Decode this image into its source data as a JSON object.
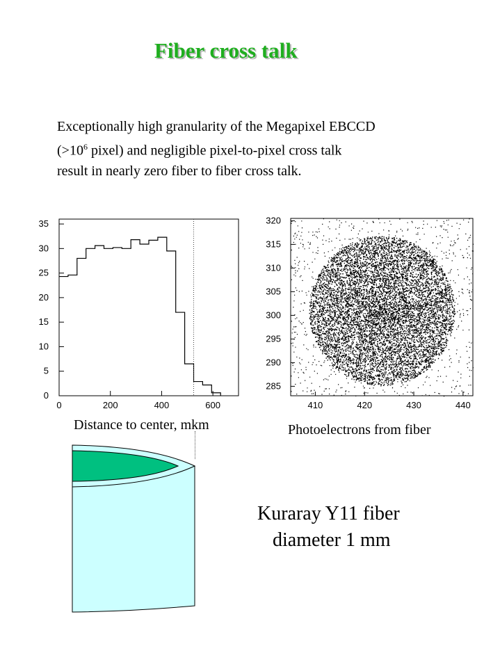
{
  "page": {
    "title": "Fiber cross talk",
    "intro_lines": [
      "Exceptionally high granularity of the Megapixel EBCCD",
      "pixel) and negligible pixel-to-pixel cross talk",
      "result in nearly zero fiber to fiber cross talk."
    ],
    "intro_prefix": "(>10",
    "intro_sup": "6",
    "fiber_label_1": "Kuraray Y11 fiber",
    "fiber_label_2": "diameter 1 mm",
    "colors": {
      "title": "#1fae1f",
      "fiber_core": "#00c080",
      "fiber_cladding": "#ccffff"
    }
  },
  "chart_data": [
    {
      "type": "bar",
      "subtype": "histogram",
      "xlabel": "Distance to center, mkm",
      "xlim": [
        0,
        700
      ],
      "ylim": [
        0,
        36
      ],
      "xticks": [
        0,
        200,
        400,
        600
      ],
      "yticks": [
        0,
        5,
        10,
        15,
        20,
        25,
        30,
        35
      ],
      "bin_edges": [
        0,
        35,
        70,
        105,
        140,
        175,
        210,
        245,
        280,
        315,
        350,
        385,
        420,
        455,
        490,
        525,
        560,
        595,
        630
      ],
      "values": [
        24.3,
        24.6,
        28,
        30,
        30.6,
        30,
        30.2,
        30,
        31.8,
        30.9,
        31.7,
        32.3,
        29.5,
        17,
        6.5,
        2.9,
        2.2,
        0.6
      ],
      "marker_line_x": 525
    },
    {
      "type": "scatter",
      "xlabel": "Photoelectrons from fiber",
      "xlim": [
        405,
        442
      ],
      "ylim": [
        283,
        320.5
      ],
      "xticks": [
        410,
        420,
        430,
        440
      ],
      "yticks": [
        285,
        290,
        295,
        300,
        305,
        310,
        315,
        320
      ],
      "cluster_center": [
        423.5,
        301
      ],
      "cluster_radius": [
        14.5,
        15.5
      ]
    }
  ]
}
